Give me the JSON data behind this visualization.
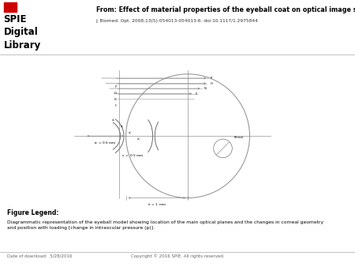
{
  "title_text": "From: Effect of material properties of the eyeball coat on optical image stability",
  "journal_text": "J. Biomed. Opt. 2008;13(5):054013-054013-6. doi:10.1117/1.2975844",
  "figure_legend_header": "Figure Legend:",
  "figure_legend_body": "Diagrammatic representation of the eyeball model showing location of the main optical planes and the changes in corneal geometry\nand position with loading [change in intraocular pressure (p)].",
  "footer_left": "Date of download:  5/28/2016",
  "footer_right": "Copyright © 2016 SPIE. All rights reserved.",
  "spie_line1": "SPIE",
  "spie_line2": "Digital",
  "spie_line3": "Library",
  "bg_color": "#ffffff"
}
